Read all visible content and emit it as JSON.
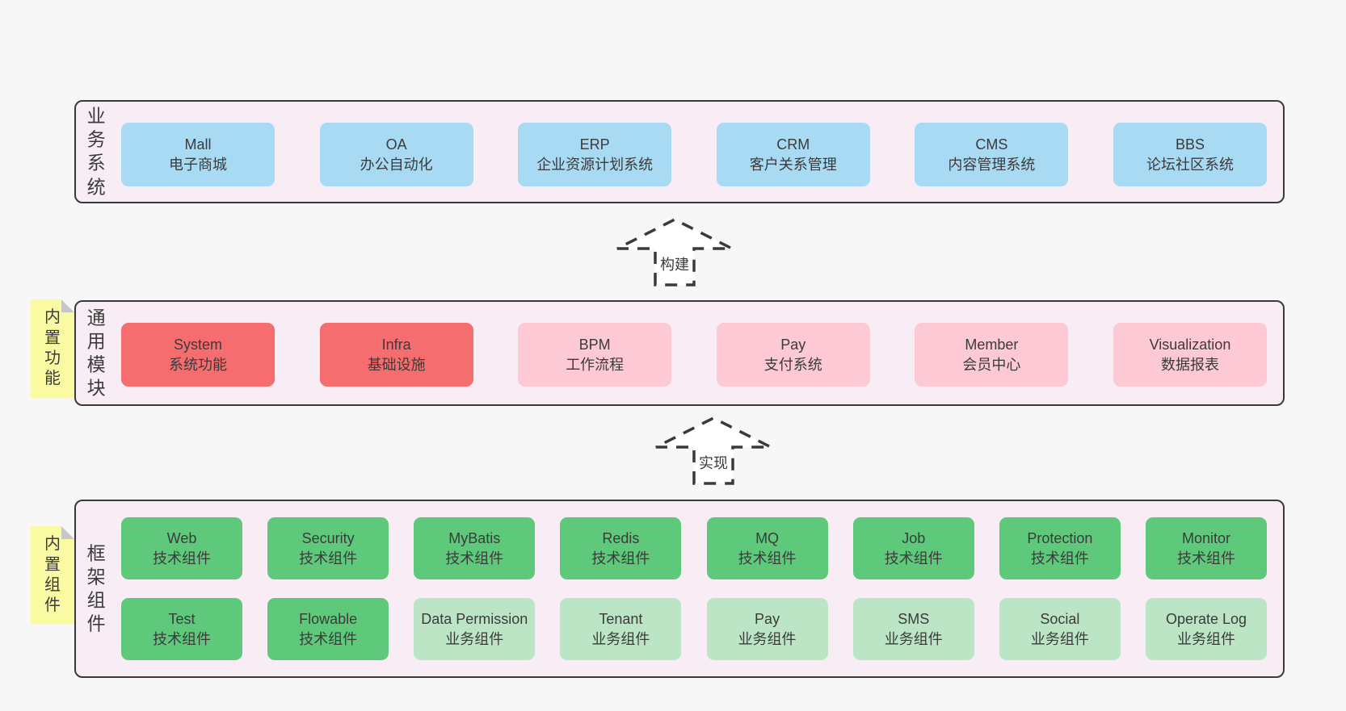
{
  "colors": {
    "page_bg": "#f7f7f7",
    "band_bg": "#f8ecf5",
    "band_border": "#3a3a3a",
    "blue": "#a9daf3",
    "red": "#f56d6f",
    "pink": "#fcc9d4",
    "green": "#5ec97b",
    "green_light": "#bce5c5",
    "sticky_yellow": "#fafaa2",
    "sticky_fold": "#c6c6c6",
    "text": "#3b3b3b"
  },
  "arrows": [
    {
      "label": "构建"
    },
    {
      "label": "实现"
    }
  ],
  "bands": [
    {
      "label": "业务系统",
      "rows": [
        [
          {
            "en": "Mall",
            "zh": "电子商城",
            "type": "blue"
          },
          {
            "en": "OA",
            "zh": "办公自动化",
            "type": "blue"
          },
          {
            "en": "ERP",
            "zh": "企业资源计划系统",
            "type": "blue"
          },
          {
            "en": "CRM",
            "zh": "客户关系管理",
            "type": "blue"
          },
          {
            "en": "CMS",
            "zh": "内容管理系统",
            "type": "blue"
          },
          {
            "en": "BBS",
            "zh": "论坛社区系统",
            "type": "blue"
          }
        ]
      ]
    },
    {
      "label": "通用模块",
      "sticky": "内置功能",
      "rows": [
        [
          {
            "en": "System",
            "zh": "系统功能",
            "type": "red"
          },
          {
            "en": "Infra",
            "zh": "基础设施",
            "type": "red"
          },
          {
            "en": "BPM",
            "zh": "工作流程",
            "type": "pink"
          },
          {
            "en": "Pay",
            "zh": "支付系统",
            "type": "pink"
          },
          {
            "en": "Member",
            "zh": "会员中心",
            "type": "pink"
          },
          {
            "en": "Visualization",
            "zh": "数据报表",
            "type": "pink"
          }
        ]
      ]
    },
    {
      "label": "框架组件",
      "sticky": "内置组件",
      "rows": [
        [
          {
            "en": "Web",
            "zh": "技术组件",
            "type": "green"
          },
          {
            "en": "Security",
            "zh": "技术组件",
            "type": "green"
          },
          {
            "en": "MyBatis",
            "zh": "技术组件",
            "type": "green"
          },
          {
            "en": "Redis",
            "zh": "技术组件",
            "type": "green"
          },
          {
            "en": "MQ",
            "zh": "技术组件",
            "type": "green"
          },
          {
            "en": "Job",
            "zh": "技术组件",
            "type": "green"
          },
          {
            "en": "Protection",
            "zh": "技术组件",
            "type": "green"
          },
          {
            "en": "Monitor",
            "zh": "技术组件",
            "type": "green"
          }
        ],
        [
          {
            "en": "Test",
            "zh": "技术组件",
            "type": "green"
          },
          {
            "en": "Flowable",
            "zh": "技术组件",
            "type": "green"
          },
          {
            "en": "Data Permission",
            "zh": "业务组件",
            "type": "green-light"
          },
          {
            "en": "Tenant",
            "zh": "业务组件",
            "type": "green-light"
          },
          {
            "en": "Pay",
            "zh": "业务组件",
            "type": "green-light"
          },
          {
            "en": "SMS",
            "zh": "业务组件",
            "type": "green-light"
          },
          {
            "en": "Social",
            "zh": "业务组件",
            "type": "green-light"
          },
          {
            "en": "Operate Log",
            "zh": "业务组件",
            "type": "green-light"
          }
        ]
      ]
    }
  ]
}
